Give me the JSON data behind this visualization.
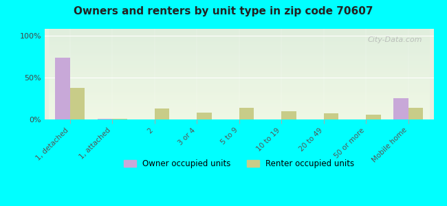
{
  "title": "Owners and renters by unit type in zip code 70607",
  "categories": [
    "1, detached",
    "1, attached",
    "2",
    "3 or 4",
    "5 to 9",
    "10 to 19",
    "20 to 49",
    "50 or more",
    "Mobile home"
  ],
  "owner_values": [
    74,
    1,
    0,
    0,
    0,
    0,
    0,
    0,
    25
  ],
  "renter_values": [
    38,
    1,
    13,
    8,
    14,
    10,
    7,
    6,
    14
  ],
  "owner_color": "#c8a8d8",
  "renter_color": "#c8cc88",
  "background_color": "#00ffff",
  "plot_bg_top": "#e8f0e0",
  "plot_bg_bottom": "#f8fff0",
  "ylabel_ticks": [
    "0%",
    "50%",
    "100%"
  ],
  "yticks": [
    0,
    50,
    100
  ],
  "ylim": [
    0,
    108
  ],
  "bar_width": 0.35,
  "watermark": "City-Data.com",
  "legend_labels": [
    "Owner occupied units",
    "Renter occupied units"
  ]
}
